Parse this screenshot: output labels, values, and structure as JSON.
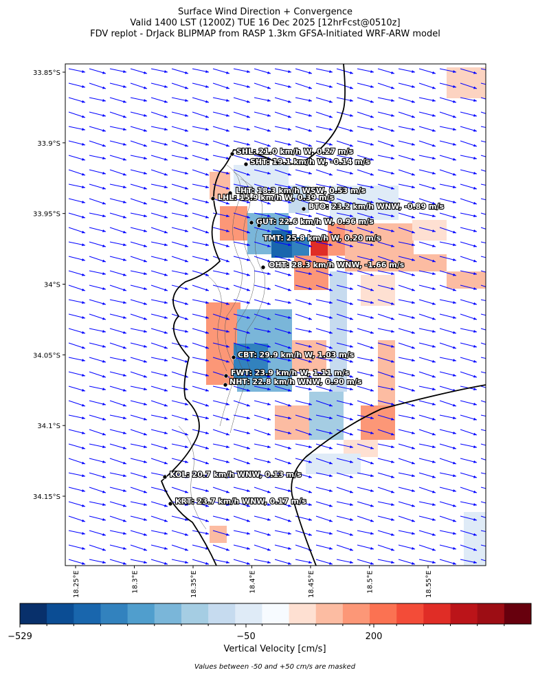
{
  "header": {
    "title_lines": [
      "Surface Wind Direction + Convergence",
      "Valid 1400 LST (1200Z) TUE 16 Dec 2025 [12hrFcst@0510z]",
      "FDV replot - DrJack BLIPMAP from RASP 1.3km GFSA-Initiated WRF-ARW model"
    ]
  },
  "map": {
    "lat_ticks": [
      {
        "value": -33.85,
        "label": "33.85°S"
      },
      {
        "value": -33.9,
        "label": "33.9°S"
      },
      {
        "value": -33.95,
        "label": "33.95°S"
      },
      {
        "value": -34,
        "label": "34°S"
      },
      {
        "value": -34.05,
        "label": "34.05°S"
      },
      {
        "value": -34.1,
        "label": "34.1°S"
      },
      {
        "value": -34.15,
        "label": "34.15°S"
      }
    ],
    "lon_ticks": [
      {
        "value": 18.25,
        "label": "18.25°E"
      },
      {
        "value": 18.3,
        "label": "18.3°E"
      },
      {
        "value": 18.35,
        "label": "18.35°E"
      },
      {
        "value": 18.4,
        "label": "18.4°E"
      },
      {
        "value": 18.45,
        "label": "18.45°E"
      },
      {
        "value": 18.5,
        "label": "18.5°E"
      },
      {
        "value": 18.55,
        "label": "18.55°E"
      }
    ],
    "stations": [
      "SHL: 21.0 km/h W, 0.27 m/s",
      "SHT: 19.1 km/h W, -0.14 m/s",
      "LHT: 18.3 km/h WSW, 0.53 m/s",
      "LHL: 15.9 km/h W, 0.39 m/s",
      "BTO: 23.2 km/h WNW, -0.89 m/s",
      "GUT: 22.6 km/h W, 0.96 m/s",
      "TMT: 25.8 km/h W, 0.20 m/s",
      "OHT: 28.3 km/h WNW, -1.66 m/s",
      "CBT: 29.9 km/h W, 1.03 m/s",
      "FWT: 23.9 km/h W, 1.11 m/s",
      "NHT: 22.8 km/h WNW, 0.90 m/s",
      "KOL: 20.7 km/h WNW, 0.13 m/s",
      "KRT: 23.7 km/h WNW, 0.17 m/s"
    ]
  },
  "colorbar": {
    "label": "Vertical Velocity [cm/s]",
    "ticks": [
      {
        "value": -529,
        "label": "−529"
      },
      {
        "value": -50,
        "label": "−50"
      },
      200
    ],
    "colors": [
      "#08306b",
      "#0b4d94",
      "#1966ad",
      "#3282be",
      "#509ecd",
      "#7ab6d9",
      "#a5cde3",
      "#c6dbef",
      "#dfebf7",
      "#f7fbff",
      "#fee0d2",
      "#fcbca2",
      "#fc9777",
      "#fb7252",
      "#f34c38",
      "#e02d26",
      "#bb1419",
      "#9d0d14",
      "#67000d"
    ]
  },
  "footnote": "Values between -50 and +50 cm/s are masked"
}
